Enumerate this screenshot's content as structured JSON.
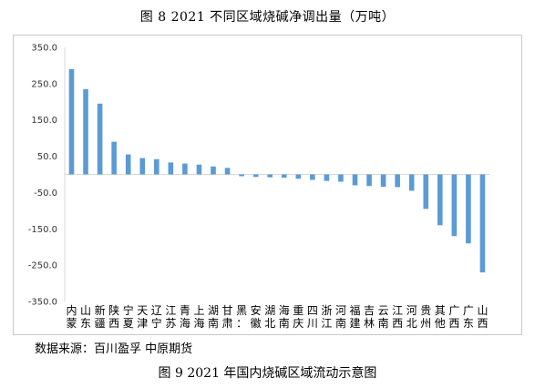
{
  "title": "图 8  2021 不同区域烧碱净调出量（万吨）",
  "source": "数据来源：百川盈孚  中原期货",
  "caption": "图 9  2021 年国内烧碱区域流动示意图",
  "colors": {
    "bar": "#5b9bd5",
    "axis": "#d9d9d9"
  },
  "chart_data": {
    "type": "bar",
    "title": "2021 不同区域烧碱净调出量（万吨）",
    "ylabel": "",
    "xlabel": "",
    "ylim": [
      -350,
      350
    ],
    "yticks": [
      350,
      250,
      150,
      50,
      -50,
      -150,
      -250,
      -350
    ],
    "ytick_labels": [
      "350.0",
      "250.0",
      "150.0",
      "50.0",
      "-50.0",
      "-150.0",
      "-250.0",
      "-350.0"
    ],
    "grid": false,
    "legend": "none",
    "categories": [
      "内蒙",
      "山东",
      "新疆",
      "陕西",
      "宁夏",
      "天津",
      "辽宁",
      "江苏",
      "青海",
      "上海",
      "湖南",
      "甘肃",
      "黑龙",
      "安徽",
      "湖北",
      "海南",
      "重庆",
      "四川",
      "浙江",
      "河南",
      "福建",
      "吉林",
      "云南",
      "江西",
      "河北",
      "贵州",
      "其他",
      "广西",
      "广东",
      "山西"
    ],
    "label_lines": [
      [
        "内",
        "蒙"
      ],
      [
        "山",
        "东"
      ],
      [
        "新",
        "疆"
      ],
      [
        "陕",
        "西"
      ],
      [
        "宁",
        "夏"
      ],
      [
        "天",
        "津"
      ],
      [
        "辽",
        "宁"
      ],
      [
        "江",
        "苏"
      ],
      [
        "青",
        "海"
      ],
      [
        "上",
        "海"
      ],
      [
        "湖",
        "南"
      ],
      [
        "甘",
        "肃"
      ],
      [
        "黑",
        "："
      ],
      [
        "安",
        "徽"
      ],
      [
        "湖",
        "北"
      ],
      [
        "海",
        "南"
      ],
      [
        "重",
        "庆"
      ],
      [
        "四",
        "川"
      ],
      [
        "浙",
        "江"
      ],
      [
        "河",
        "南"
      ],
      [
        "福",
        "建"
      ],
      [
        "吉",
        "林"
      ],
      [
        "云",
        "南"
      ],
      [
        "江",
        "西"
      ],
      [
        "河",
        "北"
      ],
      [
        "贵",
        "州"
      ],
      [
        "其",
        "他"
      ],
      [
        "广",
        "西"
      ],
      [
        "广",
        "东"
      ],
      [
        "山",
        "西"
      ]
    ],
    "values": [
      290,
      235,
      195,
      90,
      55,
      45,
      42,
      33,
      30,
      27,
      22,
      18,
      -5,
      -7,
      -8,
      -9,
      -12,
      -15,
      -18,
      -20,
      -30,
      -32,
      -34,
      -35,
      -45,
      -95,
      -140,
      -170,
      -190,
      -270
    ]
  }
}
